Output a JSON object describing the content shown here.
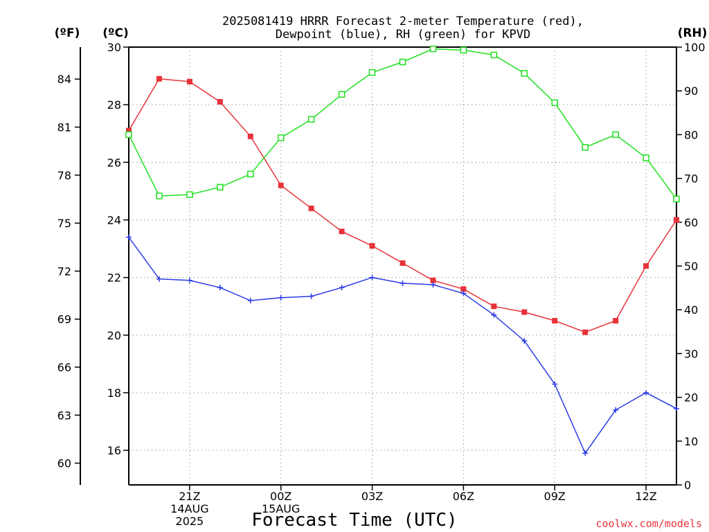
{
  "chart_data": {
    "type": "line",
    "title_line1": "2025081419 HRRR Forecast 2-meter Temperature (red),",
    "title_line2": "Dewpoint (blue), RH (green) for KPVD",
    "xlabel": "Forecast Time (UTC)",
    "credit": "coolwx.com/models",
    "unit_labels": {
      "fahrenheit": "(ºF)",
      "celsius": "(ºC)",
      "rh": "(RH)"
    },
    "x_range": [
      19,
      37
    ],
    "y_left_celsius": {
      "range": [
        14.8,
        30
      ],
      "ticks": [
        16,
        18,
        20,
        22,
        24,
        26,
        28,
        30
      ]
    },
    "y_left_fahrenheit": {
      "ticks": [
        60,
        63,
        66,
        69,
        72,
        75,
        78,
        81,
        84
      ]
    },
    "y_right_rh": {
      "range": [
        0,
        100
      ],
      "ticks": [
        0,
        10,
        20,
        30,
        40,
        50,
        60,
        70,
        80,
        90,
        100
      ]
    },
    "x_ticks": [
      {
        "x": 21,
        "lines": [
          "21Z",
          "14AUG",
          "2025"
        ]
      },
      {
        "x": 24,
        "lines": [
          "00Z",
          "15AUG"
        ]
      },
      {
        "x": 27,
        "lines": [
          "03Z"
        ]
      },
      {
        "x": 30,
        "lines": [
          "06Z"
        ]
      },
      {
        "x": 33,
        "lines": [
          "09Z"
        ]
      },
      {
        "x": 36,
        "lines": [
          "12Z"
        ]
      }
    ],
    "grid": true,
    "series": [
      {
        "name": "Temperature",
        "axis": "celsius",
        "color": "#e8323a",
        "marker": "filled-square",
        "x": [
          19,
          20,
          21,
          22,
          23,
          24,
          25,
          26,
          27,
          28,
          29,
          30,
          31,
          32,
          33,
          34,
          35,
          36,
          37
        ],
        "values": [
          27.1,
          28.9,
          28.8,
          28.1,
          26.9,
          25.2,
          24.4,
          23.6,
          23.1,
          22.5,
          21.9,
          21.6,
          21.0,
          20.8,
          20.5,
          20.1,
          20.5,
          22.4,
          24.0
        ]
      },
      {
        "name": "Dewpoint",
        "axis": "celsius",
        "color": "#2a3ae6",
        "marker": "plus",
        "x": [
          19,
          20,
          21,
          22,
          23,
          24,
          25,
          26,
          27,
          28,
          29,
          30,
          31,
          32,
          33,
          34,
          35,
          36,
          37
        ],
        "values": [
          23.4,
          21.95,
          21.9,
          21.65,
          21.2,
          21.3,
          21.35,
          21.65,
          22.0,
          21.8,
          21.75,
          21.45,
          20.7,
          19.8,
          18.3,
          15.9,
          17.4,
          18.0,
          17.45
        ]
      },
      {
        "name": "RH",
        "axis": "rh",
        "color": "#1fe01f",
        "marker": "open-square",
        "x": [
          19,
          20,
          21,
          22,
          23,
          24,
          25,
          26,
          27,
          28,
          29,
          30,
          31,
          32,
          33,
          34,
          35,
          36,
          37
        ],
        "values": [
          80,
          66,
          66.3,
          68,
          71,
          79.3,
          83.5,
          89.2,
          94.2,
          96.6,
          99.6,
          99.3,
          98.2,
          94.0,
          87.3,
          77.1,
          80.0,
          74.7,
          65.3
        ]
      }
    ]
  }
}
